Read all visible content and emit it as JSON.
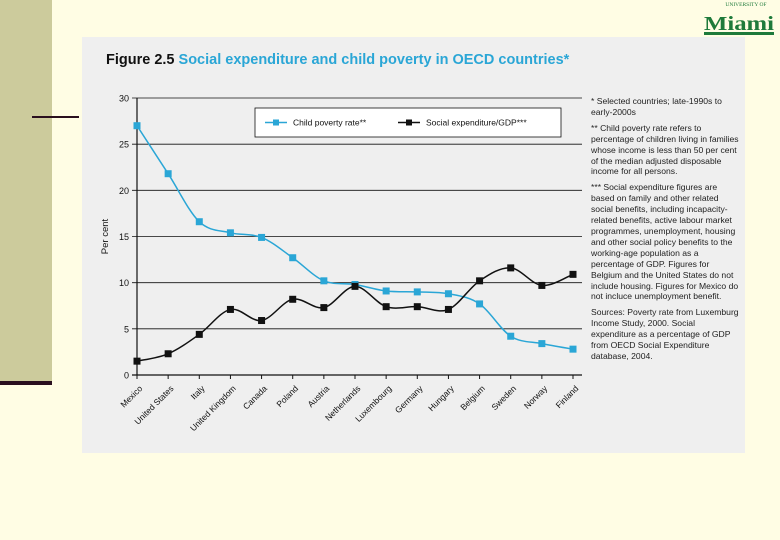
{
  "slide": {
    "logo": {
      "top_text": "UNIVERSITY OF",
      "main_text": "Miami",
      "color": "#1e7a3a"
    }
  },
  "figure": {
    "label": "Figure 2.5",
    "title": "Social expenditure and child poverty in OECD countries*",
    "notes": [
      "* Selected countries; late-1990s to early-2000s",
      "** Child poverty rate refers to percentage of children living in families whose income is less than 50 per cent of the median adjusted disposable income for all persons.",
      "*** Social expenditure figures are based on family and other related social benefits, including incapacity-related benefits, active labour market programmes, unemployment, housing and other social policy benefits to the working-age population as a percentage of GDP.  Figures for Belgium and the United States do not include housing. Figures for Mexico do not incluce unemployment benefit.",
      "Sources: Poverty rate from Luxemburg Income Study, 2000. Social expenditure as a percentage of GDP from OECD Social Expenditure database, 2004."
    ]
  },
  "chart_data": {
    "type": "line",
    "title": "Social expenditure and child poverty in OECD countries*",
    "ylabel": "Per cent",
    "xlabel": "",
    "ylim": [
      0,
      30
    ],
    "yticks": [
      0,
      5,
      10,
      15,
      20,
      25,
      30
    ],
    "grid": true,
    "legend": "top-right",
    "categories": [
      "Mexico",
      "United States",
      "Italy",
      "United Kingdom",
      "Canada",
      "Poland",
      "Austria",
      "Netherlands",
      "Luxembourg",
      "Germany",
      "Hungary",
      "Belgium",
      "Sweden",
      "Norway",
      "Finland"
    ],
    "series": [
      {
        "name": "Child poverty rate**",
        "color": "#2aa6d6",
        "values": [
          27.0,
          21.8,
          16.6,
          15.4,
          14.9,
          12.7,
          10.2,
          9.8,
          9.1,
          9.0,
          8.8,
          7.7,
          4.2,
          3.4,
          2.8
        ]
      },
      {
        "name": "Social expenditure/GDP***",
        "color": "#111111",
        "values": [
          1.5,
          2.3,
          4.4,
          7.1,
          5.9,
          8.2,
          7.3,
          9.6,
          7.4,
          7.4,
          7.1,
          10.2,
          11.6,
          9.7,
          10.9
        ]
      }
    ]
  }
}
